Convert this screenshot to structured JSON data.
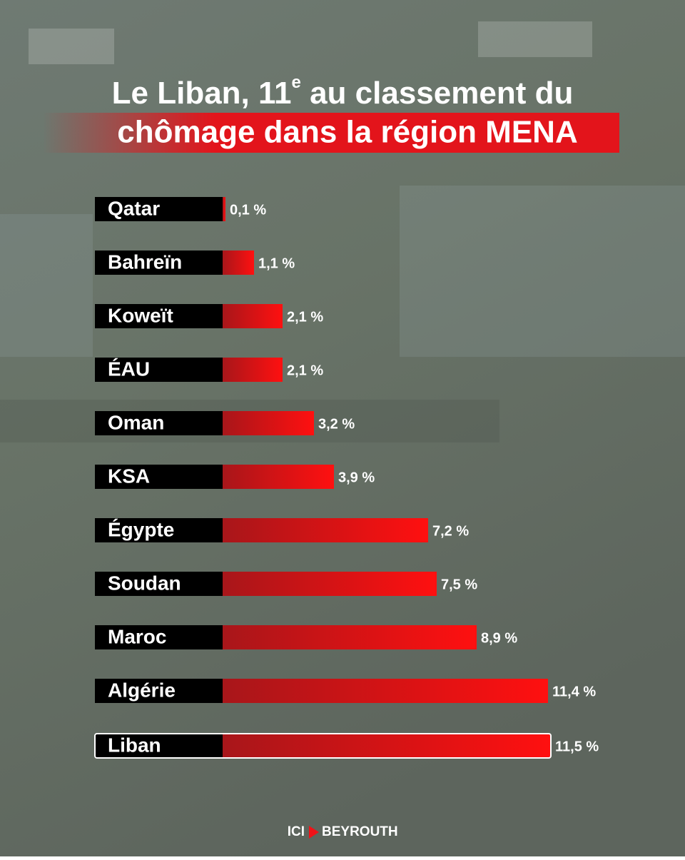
{
  "chart_data": {
    "type": "bar",
    "orientation": "horizontal",
    "title_line1": "Le Liban, 11",
    "title_sup": "e",
    "title_line1_end": " au classement du",
    "title_line2": "chômage dans la région MENA",
    "categories": [
      "Qatar",
      "Bahreïn",
      "Koweït",
      "ÉAU",
      "Oman",
      "KSA",
      "Égypte",
      "Soudan",
      "Maroc",
      "Algérie",
      "Liban"
    ],
    "values": [
      0.1,
      1.1,
      2.1,
      2.1,
      3.2,
      3.9,
      7.2,
      7.5,
      8.9,
      11.4,
      11.5
    ],
    "value_labels": [
      "0,1 %",
      "1,1 %",
      "2,1 %",
      "2,1 %",
      "3,2 %",
      "3,9 %",
      "7,2 %",
      "7,5 %",
      "8,9 %",
      "11,4 %",
      "11,5 %"
    ],
    "color": "#f01218",
    "highlight_index": 10,
    "logo_left": "ICI",
    "logo_right": "BEYROUTH"
  }
}
